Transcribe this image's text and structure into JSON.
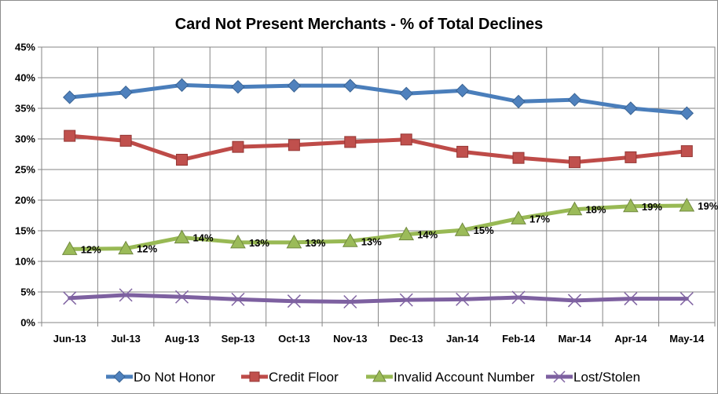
{
  "chart_data": {
    "type": "line",
    "title": "Card Not Present Merchants - % of Total Declines",
    "xlabel": "",
    "ylabel": "",
    "ylim": [
      0,
      45
    ],
    "yticks": [
      "0%",
      "5%",
      "10%",
      "15%",
      "20%",
      "25%",
      "30%",
      "35%",
      "40%",
      "45%"
    ],
    "grid": true,
    "legend_position": "bottom",
    "categories": [
      "Jun-13",
      "Jul-13",
      "Aug-13",
      "Sep-13",
      "Oct-13",
      "Nov-13",
      "Dec-13",
      "Jan-14",
      "Feb-14",
      "Mar-14",
      "Apr-14",
      "May-14"
    ],
    "series": [
      {
        "name": "Do Not Honor",
        "color": "#4a7ebb",
        "marker": "diamond",
        "markerColor": "#4f81bd",
        "values": [
          36.8,
          37.6,
          38.8,
          38.5,
          38.7,
          38.7,
          37.4,
          37.9,
          36.1,
          36.4,
          35.0,
          34.2
        ]
      },
      {
        "name": "Credit Floor",
        "color": "#be4b48",
        "marker": "square",
        "markerColor": "#c0504d",
        "values": [
          30.5,
          29.7,
          26.6,
          28.7,
          29.0,
          29.5,
          29.9,
          27.9,
          26.9,
          26.2,
          27.0,
          28.0
        ]
      },
      {
        "name": "Invalid Account Number",
        "color": "#98b954",
        "marker": "triangle",
        "markerColor": "#9bbb59",
        "values": [
          12.0,
          12.1,
          13.9,
          13.1,
          13.1,
          13.3,
          14.4,
          15.1,
          17.0,
          18.5,
          19.0,
          19.1
        ],
        "labels": [
          "12%",
          "12%",
          "14%",
          "13%",
          "13%",
          "13%",
          "14%",
          "15%",
          "17%",
          "18%",
          "19%",
          "19%"
        ]
      },
      {
        "name": "Lost/Stolen",
        "color": "#7d60a0",
        "marker": "x",
        "markerColor": "#8064a2",
        "values": [
          4.0,
          4.5,
          4.2,
          3.8,
          3.5,
          3.4,
          3.7,
          3.8,
          4.1,
          3.6,
          3.9,
          3.9
        ]
      }
    ]
  }
}
